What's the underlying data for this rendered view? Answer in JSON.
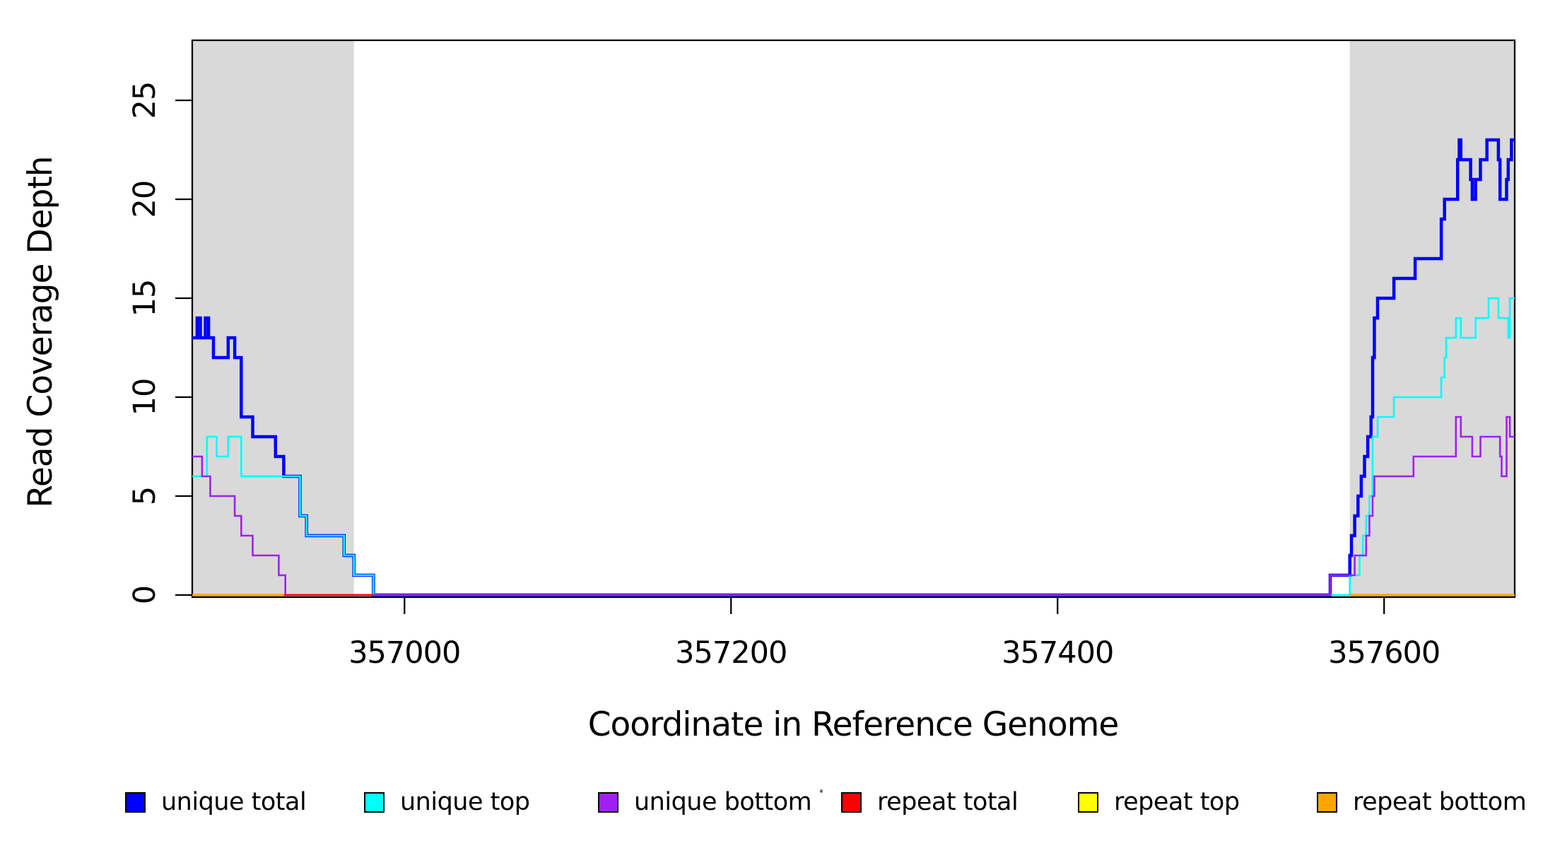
{
  "chart_data": {
    "type": "line",
    "subtype": "step",
    "title": "",
    "xlabel": "Coordinate in Reference Genome",
    "ylabel": "Read Coverage Depth",
    "xlim": [
      356870,
      357680
    ],
    "ylim": [
      0,
      28
    ],
    "x_ticks": [
      357000,
      357200,
      357400,
      357600
    ],
    "y_ticks": [
      0,
      5,
      10,
      15,
      20,
      25
    ],
    "grid": false,
    "legend_position": "bottom",
    "shaded_regions": [
      {
        "x0": 356870,
        "x1": 356969,
        "color": "#D9D9D9"
      },
      {
        "x0": 357579,
        "x1": 357680,
        "color": "#D9D9D9"
      }
    ],
    "series": [
      {
        "name": "unique total",
        "color": "#0000FF",
        "width": 4.5,
        "segments": [
          [
            [
              356870,
              13
            ],
            [
              356873,
              14
            ],
            [
              356875,
              13
            ],
            [
              356878,
              14
            ],
            [
              356880,
              13
            ],
            [
              356883,
              12
            ],
            [
              356892,
              13
            ],
            [
              356896,
              12
            ],
            [
              356900,
              9
            ],
            [
              356907,
              8
            ],
            [
              356921,
              7
            ],
            [
              356926,
              6
            ],
            [
              356936,
              4
            ],
            [
              356940,
              3
            ],
            [
              356963,
              2
            ],
            [
              356969,
              1
            ],
            [
              356981,
              0
            ],
            [
              357567,
              1
            ],
            [
              357579,
              2
            ],
            [
              357580,
              3
            ],
            [
              357582,
              4
            ],
            [
              357584,
              5
            ],
            [
              357586,
              6
            ],
            [
              357588,
              7
            ],
            [
              357590,
              8
            ],
            [
              357592,
              9
            ],
            [
              357593,
              12
            ],
            [
              357594,
              14
            ],
            [
              357596,
              15
            ],
            [
              357606,
              16
            ],
            [
              357619,
              17
            ],
            [
              357635,
              19
            ],
            [
              357637,
              20
            ],
            [
              357645,
              22
            ],
            [
              357646,
              23
            ],
            [
              357647,
              22
            ],
            [
              357653,
              21
            ],
            [
              357654,
              20
            ],
            [
              357656,
              21
            ],
            [
              357659,
              22
            ],
            [
              357663,
              23
            ],
            [
              357670,
              22
            ],
            [
              357671,
              20
            ],
            [
              357675,
              21
            ],
            [
              357676,
              22
            ],
            [
              357678,
              23
            ],
            [
              357680,
              null
            ]
          ]
        ]
      },
      {
        "name": "unique top",
        "color": "#00FFFF",
        "width": 2.6,
        "segments": [
          [
            [
              356870,
              6
            ],
            [
              356879,
              8
            ],
            [
              356885,
              7
            ],
            [
              356892,
              8
            ],
            [
              356900,
              6
            ],
            [
              356936,
              4
            ],
            [
              356940,
              3
            ],
            [
              356963,
              2
            ],
            [
              356969,
              1
            ],
            [
              356981,
              0
            ],
            [
              357579,
              1
            ],
            [
              357585,
              2
            ],
            [
              357587,
              3
            ],
            [
              357589,
              4
            ],
            [
              357591,
              5
            ],
            [
              357593,
              8
            ],
            [
              357596,
              9
            ],
            [
              357606,
              10
            ],
            [
              357635,
              11
            ],
            [
              357637,
              12
            ],
            [
              357638,
              13
            ],
            [
              357644,
              14
            ],
            [
              357647,
              13
            ],
            [
              357656,
              14
            ],
            [
              357664,
              15
            ],
            [
              357670,
              14
            ],
            [
              357676,
              13
            ],
            [
              357677,
              15
            ],
            [
              357680,
              null
            ]
          ]
        ]
      },
      {
        "name": "unique bottom",
        "color": "#A020F0",
        "width": 2.6,
        "segments": [
          [
            [
              356870,
              7
            ],
            [
              356876,
              6
            ],
            [
              356881,
              5
            ],
            [
              356896,
              4
            ],
            [
              356900,
              3
            ],
            [
              356907,
              2
            ],
            [
              356923,
              1
            ],
            [
              356927,
              0
            ],
            [
              357567,
              1
            ],
            [
              357582,
              2
            ],
            [
              357589,
              3
            ],
            [
              357591,
              4
            ],
            [
              357593,
              5
            ],
            [
              357594,
              6
            ],
            [
              357618,
              7
            ],
            [
              357644,
              9
            ],
            [
              357647,
              8
            ],
            [
              357654,
              7
            ],
            [
              357659,
              8
            ],
            [
              357671,
              7
            ],
            [
              357672,
              6
            ],
            [
              357675,
              9
            ],
            [
              357677,
              8
            ],
            [
              357680,
              null
            ]
          ]
        ]
      },
      {
        "name": "repeat total",
        "color": "#FF0000",
        "width": 2.6,
        "segments": [
          [
            [
              356870,
              0
            ],
            [
              356981,
              null
            ]
          ],
          [
            [
              357579,
              0
            ],
            [
              357680,
              null
            ]
          ]
        ]
      },
      {
        "name": "repeat top",
        "color": "#FFFF00",
        "width": 2.6,
        "segments": [
          [
            [
              356870,
              0
            ],
            [
              356926,
              null
            ]
          ],
          [
            [
              357579,
              0
            ],
            [
              357680,
              null
            ]
          ]
        ]
      },
      {
        "name": "repeat bottom",
        "color": "#FFA500",
        "width": 3.2,
        "segments": [
          [
            [
              356870,
              0
            ],
            [
              356926,
              null
            ]
          ],
          [
            [
              357579,
              0
            ],
            [
              357680,
              null
            ]
          ]
        ]
      }
    ]
  },
  "legend": {
    "items": [
      {
        "label": "unique total",
        "color": "#0000FF"
      },
      {
        "label": "unique top",
        "color": "#00FFFF"
      },
      {
        "label": "unique bottom",
        "color": "#A020F0"
      },
      {
        "label": "repeat total",
        "color": "#FF0000"
      },
      {
        "label": "repeat top",
        "color": "#FFFF00"
      },
      {
        "label": "repeat bottom",
        "color": "#FFA500"
      }
    ]
  }
}
